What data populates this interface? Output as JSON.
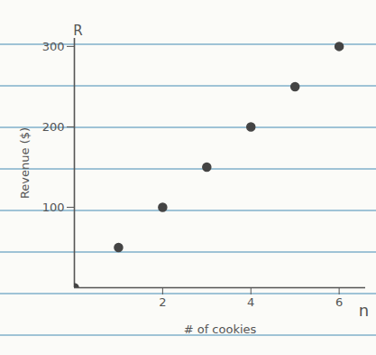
{
  "chart_data": {
    "type": "scatter",
    "x_label": "# of cookies",
    "y_label": "Revenue ($)",
    "x_symbol": "n",
    "y_symbol": "R",
    "x": [
      0,
      1,
      2,
      3,
      4,
      5,
      6
    ],
    "values": [
      0,
      50,
      100,
      150,
      200,
      250,
      300
    ],
    "color": "#444444",
    "xlim": [
      0,
      6.6
    ],
    "ylim": [
      0,
      310
    ],
    "xticks": [
      2,
      4,
      6
    ],
    "yticks": [
      100,
      200,
      300
    ],
    "grid": false
  }
}
